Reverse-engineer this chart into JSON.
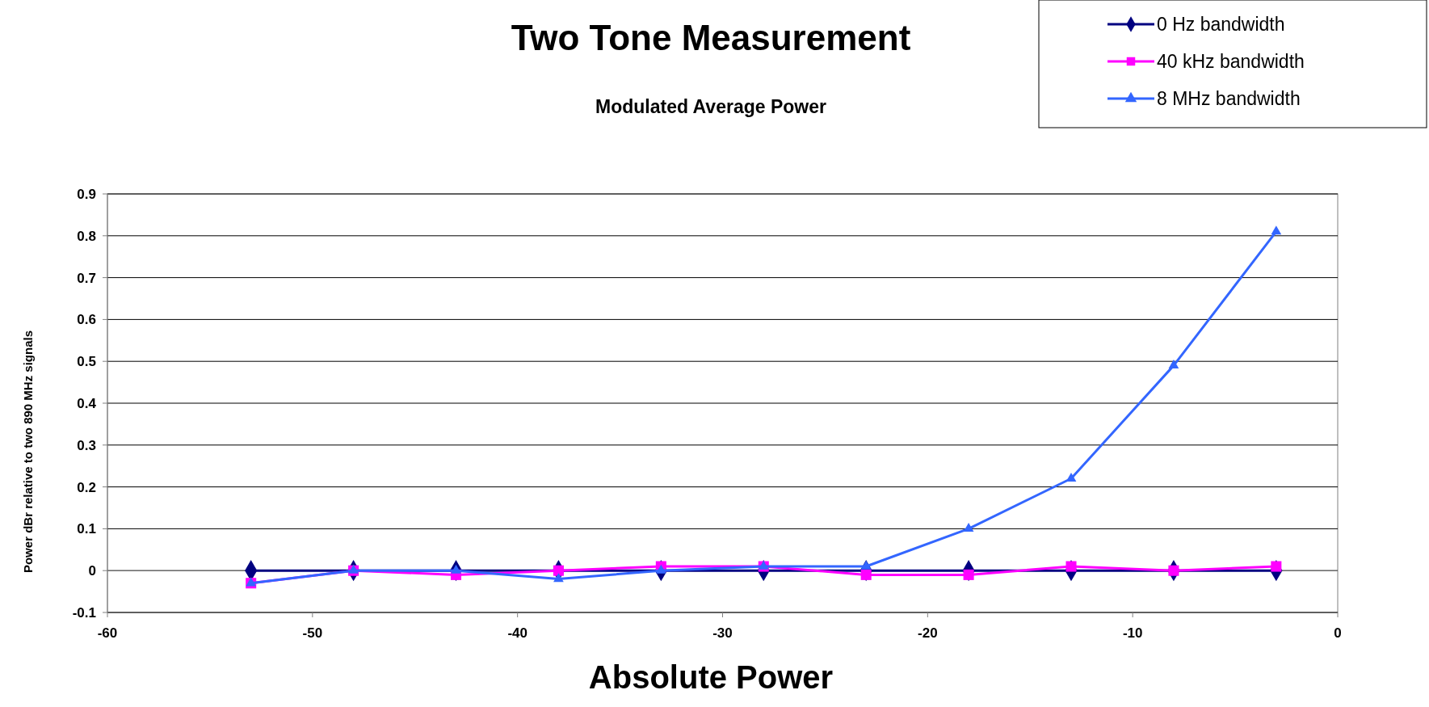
{
  "chart_data": {
    "type": "line",
    "title": "Two Tone Measurement",
    "subtitle": "Modulated Average Power",
    "xlabel": "Absolute Power",
    "ylabel": "Power dBr  relative to two 890 MHz signals",
    "x": [
      -53,
      -48,
      -43,
      -38,
      -33,
      -28,
      -23,
      -18,
      -13,
      -8,
      -3
    ],
    "series": [
      {
        "name": "0 Hz bandwidth",
        "color": "#000080",
        "marker": "diamond",
        "values": [
          0,
          0,
          0,
          0,
          0,
          0,
          0,
          0,
          0,
          0,
          0
        ]
      },
      {
        "name": "40 kHz bandwidth",
        "color": "#ff00ff",
        "marker": "square",
        "values": [
          -0.03,
          0,
          -0.01,
          0,
          0.01,
          0.01,
          -0.01,
          -0.01,
          0.01,
          0,
          0.01
        ]
      },
      {
        "name": "8 MHz bandwidth",
        "color": "#3366ff",
        "marker": "triangle",
        "values": [
          -0.03,
          0,
          0,
          -0.02,
          0,
          0.01,
          0.01,
          0.1,
          0.22,
          0.49,
          0.81
        ]
      }
    ],
    "xlim": [
      -60,
      0
    ],
    "xticks": [
      -60,
      -50,
      -40,
      -30,
      -20,
      -10,
      0
    ],
    "ylim": [
      -0.1,
      0.9
    ],
    "yticks": [
      -0.1,
      0,
      0.1,
      0.2,
      0.3,
      0.4,
      0.5,
      0.6,
      0.7,
      0.8,
      0.9
    ],
    "grid": "y",
    "legend": "top right",
    "line_style": "solid"
  }
}
